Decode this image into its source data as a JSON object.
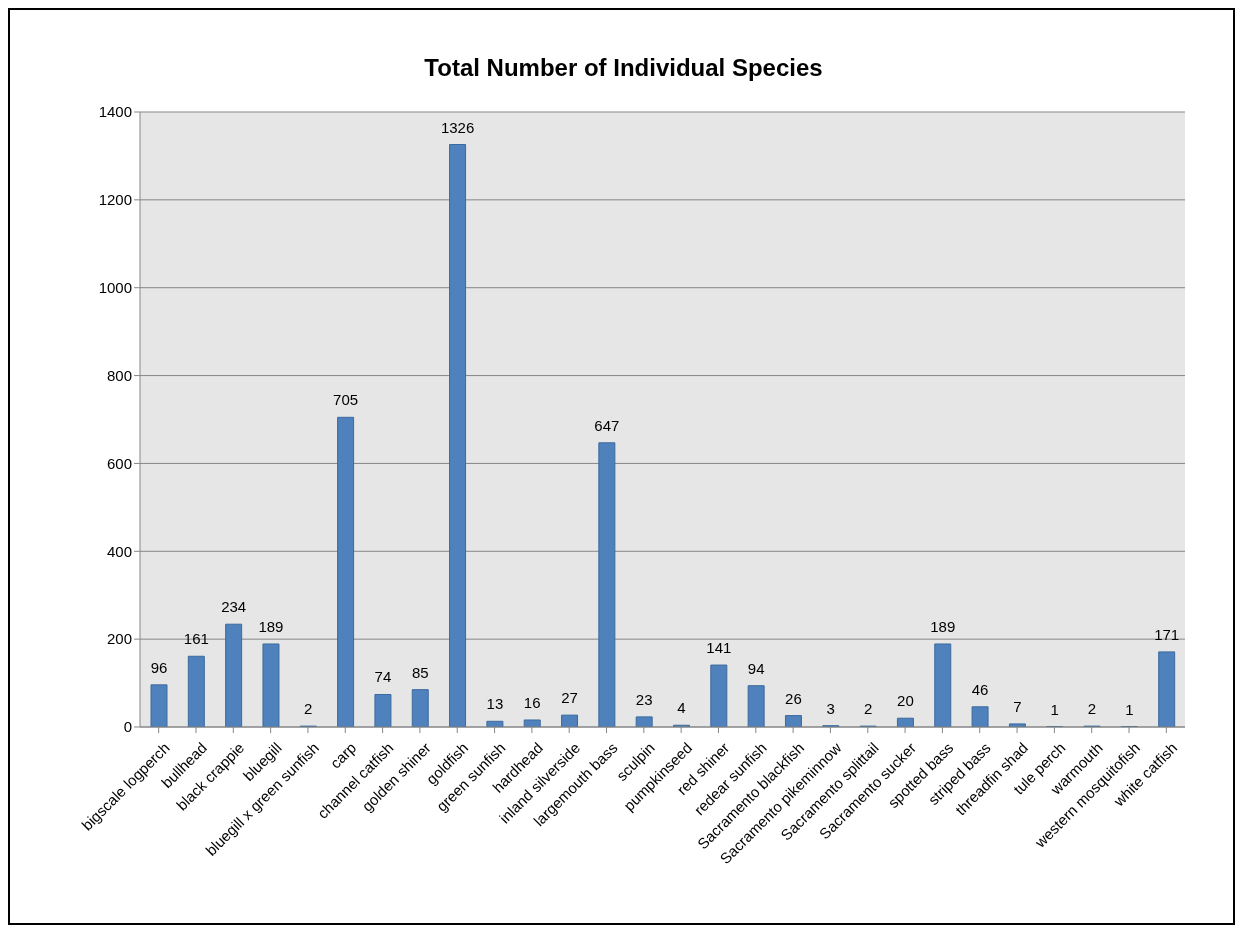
{
  "chart_data": {
    "type": "bar",
    "title": "Total Number of Individual Species",
    "categories": [
      "bigscale logperch",
      "bullhead",
      "black crappie",
      "bluegill",
      "bluegill x green sunfish",
      "carp",
      "channel catfish",
      "golden shiner",
      "goldfish",
      "green sunfish",
      "hardhead",
      "inland silverside",
      "largemouth bass",
      "sculpin",
      "pumpkinseed",
      "red shiner",
      "redear sunfish",
      "Sacramento blackfish",
      "Sacramento pikeminnow",
      "Sacramento splittail",
      "Sacramento sucker",
      "spotted bass",
      "striped bass",
      "threadfin shad",
      "tule perch",
      "warmouth",
      "western mosquitofish",
      "white catfish"
    ],
    "values": [
      96,
      161,
      234,
      189,
      2,
      705,
      74,
      85,
      1326,
      13,
      16,
      27,
      647,
      23,
      4,
      141,
      94,
      26,
      3,
      2,
      20,
      189,
      46,
      7,
      1,
      2,
      1,
      171
    ],
    "color": "#4f81bd",
    "ylim": [
      0,
      1400
    ],
    "yticks": [
      0,
      200,
      400,
      600,
      800,
      1000,
      1200,
      1400
    ],
    "grid": "y",
    "data_labels": true
  }
}
